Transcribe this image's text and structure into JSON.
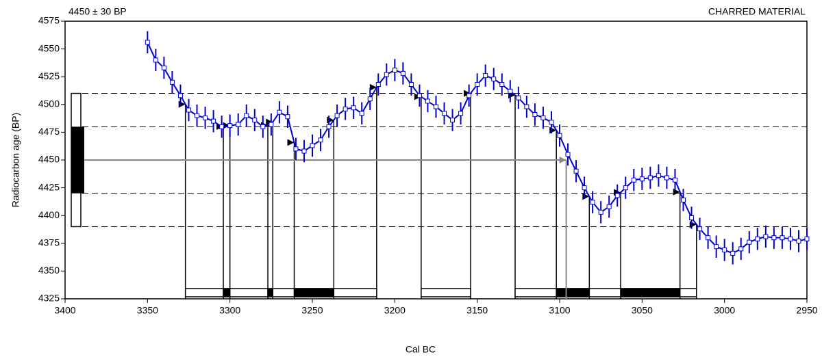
{
  "chart_data": {
    "type": "calibration",
    "annotation_left": "4450 ± 30 BP",
    "annotation_right": "CHARRED MATERIAL",
    "x_label": "Cal BC",
    "y_label": "Radiocarbon age (BP)",
    "xlim": [
      3400,
      2950
    ],
    "xticks": [
      3400,
      3350,
      3300,
      3250,
      3200,
      3150,
      3100,
      3050,
      3000,
      2950
    ],
    "ylim": [
      4325,
      4575
    ],
    "yticks": [
      4325,
      4350,
      4375,
      4400,
      4425,
      4450,
      4475,
      4500,
      4525,
      4550,
      4575
    ],
    "measurement": 4450,
    "sigma": 30,
    "intercepts": [
      3096
    ],
    "ranges_1sigma": [
      [
        3304,
        3300
      ],
      [
        3277,
        3274
      ],
      [
        3261,
        3237
      ],
      [
        3102,
        3082
      ],
      [
        3063,
        3027
      ]
    ],
    "ranges_2sigma": [
      [
        3327,
        3211
      ],
      [
        3184,
        3154
      ],
      [
        3127,
        3017
      ]
    ],
    "error": 10,
    "series": [
      {
        "name": "Calibration curve",
        "color": "#0000cc",
        "x": [
          3350,
          3345,
          3340,
          3335,
          3330,
          3325,
          3320,
          3315,
          3310,
          3305,
          3300,
          3295,
          3290,
          3285,
          3280,
          3275,
          3270,
          3265,
          3260,
          3255,
          3250,
          3245,
          3240,
          3235,
          3230,
          3225,
          3220,
          3215,
          3210,
          3205,
          3200,
          3195,
          3190,
          3185,
          3180,
          3175,
          3170,
          3165,
          3160,
          3155,
          3150,
          3145,
          3140,
          3135,
          3130,
          3125,
          3120,
          3115,
          3110,
          3105,
          3100,
          3095,
          3090,
          3085,
          3080,
          3075,
          3070,
          3065,
          3060,
          3055,
          3050,
          3045,
          3040,
          3035,
          3030,
          3025,
          3020,
          3015,
          3010,
          3005,
          3000,
          2995,
          2990,
          2985,
          2980,
          2975,
          2970,
          2965,
          2960,
          2955,
          2950
        ],
        "values": [
          4556,
          4540,
          4533,
          4520,
          4508,
          4495,
          4490,
          4488,
          4485,
          4480,
          4481,
          4482,
          4490,
          4486,
          4480,
          4482,
          4493,
          4489,
          4460,
          4458,
          4463,
          4468,
          4480,
          4490,
          4496,
          4497,
          4492,
          4505,
          4518,
          4527,
          4531,
          4528,
          4518,
          4508,
          4503,
          4498,
          4492,
          4486,
          4492,
          4508,
          4518,
          4526,
          4523,
          4518,
          4512,
          4506,
          4498,
          4491,
          4488,
          4484,
          4472,
          4455,
          4440,
          4425,
          4412,
          4403,
          4408,
          4418,
          4425,
          4432,
          4433,
          4434,
          4436,
          4434,
          4432,
          4414,
          4398,
          4388,
          4380,
          4372,
          4369,
          4366,
          4370,
          4376,
          4379,
          4381,
          4380,
          4380,
          4379,
          4377,
          4379
        ]
      }
    ]
  }
}
